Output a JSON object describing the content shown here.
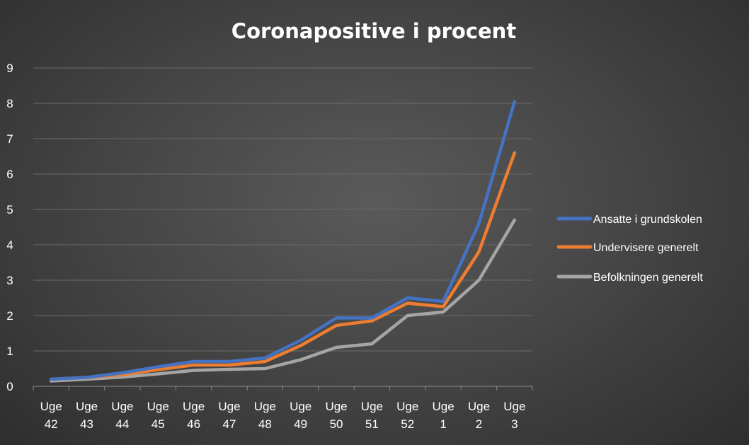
{
  "chart_data": {
    "type": "line",
    "title": "Coronapositive  i procent",
    "xlabel": "",
    "ylabel": "",
    "ylim": [
      0,
      9
    ],
    "yticks": [
      "0",
      "1",
      "2",
      "3",
      "4",
      "5",
      "6",
      "7",
      "8",
      "9"
    ],
    "grid": true,
    "legend_position": "right",
    "categories": [
      [
        "Uge",
        "42"
      ],
      [
        "Uge",
        "43"
      ],
      [
        "Uge",
        "44"
      ],
      [
        "Uge",
        "45"
      ],
      [
        "Uge",
        "46"
      ],
      [
        "Uge",
        "47"
      ],
      [
        "Uge",
        "48"
      ],
      [
        "Uge",
        "49"
      ],
      [
        "Uge",
        "50"
      ],
      [
        "Uge",
        "51"
      ],
      [
        "Uge",
        "52"
      ],
      [
        "Uge",
        "1"
      ],
      [
        "Uge",
        "2"
      ],
      [
        "Uge",
        "3"
      ]
    ],
    "series": [
      {
        "name": "Ansatte i grundskolen",
        "color": "#4472c4",
        "values": [
          0.2,
          0.25,
          0.38,
          0.55,
          0.7,
          0.7,
          0.8,
          1.3,
          1.93,
          1.93,
          2.5,
          2.4,
          4.6,
          8.05
        ]
      },
      {
        "name": "Undervisere generelt",
        "color": "#ed7d31",
        "values": [
          0.2,
          0.25,
          0.33,
          0.47,
          0.6,
          0.6,
          0.7,
          1.15,
          1.72,
          1.85,
          2.35,
          2.25,
          3.8,
          6.6
        ]
      },
      {
        "name": "Befolkningen generelt",
        "color": "#a5a5a5",
        "values": [
          0.15,
          0.2,
          0.26,
          0.35,
          0.45,
          0.48,
          0.5,
          0.75,
          1.1,
          1.2,
          2.0,
          2.1,
          3.0,
          4.7
        ]
      }
    ]
  }
}
